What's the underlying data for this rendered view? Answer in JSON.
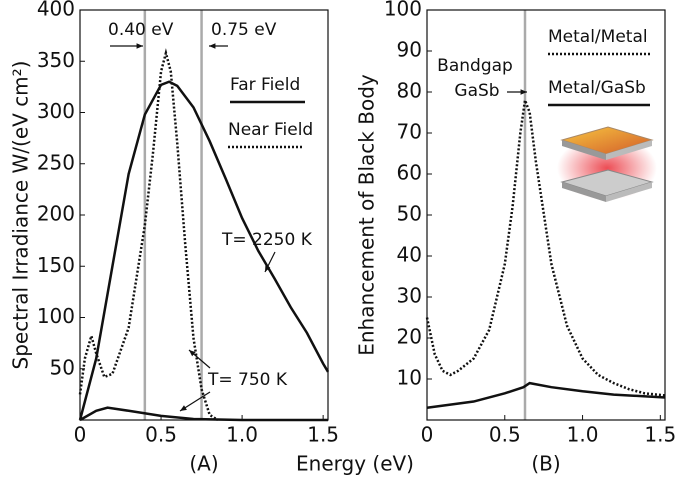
{
  "chart_data": [
    {
      "type": "line",
      "panel": "(A)",
      "xlabel": "Energy (eV)",
      "ylabel": "Spectral Irradiance W/(eV cm²)",
      "xlim": [
        0,
        1.53
      ],
      "ylim": [
        0,
        400
      ],
      "xticks": [
        0,
        0.5,
        {
          "value": 1,
          "label": "1.0"
        },
        1.5
      ],
      "yticks": [
        50,
        100,
        150,
        200,
        250,
        300,
        350,
        400
      ],
      "series": [
        {
          "color": "#111111",
          "dash": false,
          "x": [
            0,
            0.1,
            0.2,
            0.3,
            0.4,
            0.5,
            0.55,
            0.6,
            0.7,
            0.8,
            0.9,
            1.0,
            1.1,
            1.2,
            1.3,
            1.4,
            1.5,
            1.53
          ],
          "values": [
            0,
            60,
            150,
            240,
            298,
            327,
            330,
            326,
            305,
            272,
            235,
            197,
            165,
            138,
            110,
            85,
            55,
            47
          ]
        },
        {
          "color": "#111111",
          "dash": true,
          "x": [
            0,
            0.03,
            0.07,
            0.1,
            0.15,
            0.2,
            0.3,
            0.4,
            0.45,
            0.5,
            0.53,
            0.56,
            0.6,
            0.65,
            0.7,
            0.75,
            0.8,
            0.85
          ],
          "values": [
            25,
            60,
            82,
            65,
            42,
            45,
            90,
            190,
            260,
            340,
            358,
            340,
            270,
            170,
            80,
            30,
            5,
            0
          ]
        },
        {
          "color": "#111111",
          "dash": false,
          "x": [
            0,
            0.1,
            0.17,
            0.3,
            0.5,
            0.7,
            1.0,
            1.53
          ],
          "values": [
            0,
            9,
            12,
            9,
            4,
            1,
            0,
            0
          ]
        }
      ],
      "legend": [
        {
          "label": "Far Field",
          "dash": false
        },
        {
          "label": "Near Field",
          "dash": true
        }
      ],
      "vlines": [
        {
          "x": 0.4,
          "label": "0.40 eV"
        },
        {
          "x": 0.75,
          "label": "0.75 eV"
        }
      ],
      "annotations": [
        "T= 2250 K",
        "T= 750 K"
      ]
    },
    {
      "type": "line",
      "panel": "(B)",
      "ylabel": "Enhancement of Black Body",
      "xlim": [
        0,
        1.53
      ],
      "ylim": [
        0,
        100
      ],
      "xticks": [
        0,
        0.5,
        {
          "value": 1,
          "label": "1.0"
        },
        1.5
      ],
      "yticks": [
        10,
        20,
        30,
        40,
        50,
        60,
        70,
        80,
        90,
        100
      ],
      "series": [
        {
          "color": "#111111",
          "dash": true,
          "x": [
            0,
            0.05,
            0.1,
            0.15,
            0.2,
            0.3,
            0.4,
            0.5,
            0.55,
            0.6,
            0.63,
            0.66,
            0.7,
            0.8,
            0.9,
            1.0,
            1.1,
            1.2,
            1.3,
            1.4,
            1.53
          ],
          "values": [
            25,
            16,
            12,
            11,
            12,
            15,
            22,
            38,
            52,
            70,
            78,
            75,
            63,
            38,
            23,
            15,
            11,
            9,
            7.5,
            6.5,
            6
          ]
        },
        {
          "color": "#111111",
          "dash": false,
          "x": [
            0,
            0.3,
            0.5,
            0.62,
            0.66,
            0.8,
            1.0,
            1.2,
            1.53
          ],
          "values": [
            3,
            4.5,
            6.5,
            8,
            9,
            8,
            7,
            6.2,
            5.5
          ]
        }
      ],
      "legend": [
        {
          "label": "Metal/Metal",
          "dash": true
        },
        {
          "label": "Metal/GaSb",
          "dash": false
        }
      ],
      "vlines": [
        {
          "x": 0.63,
          "label": [
            "Bandgap",
            "GaSb"
          ]
        }
      ]
    }
  ]
}
